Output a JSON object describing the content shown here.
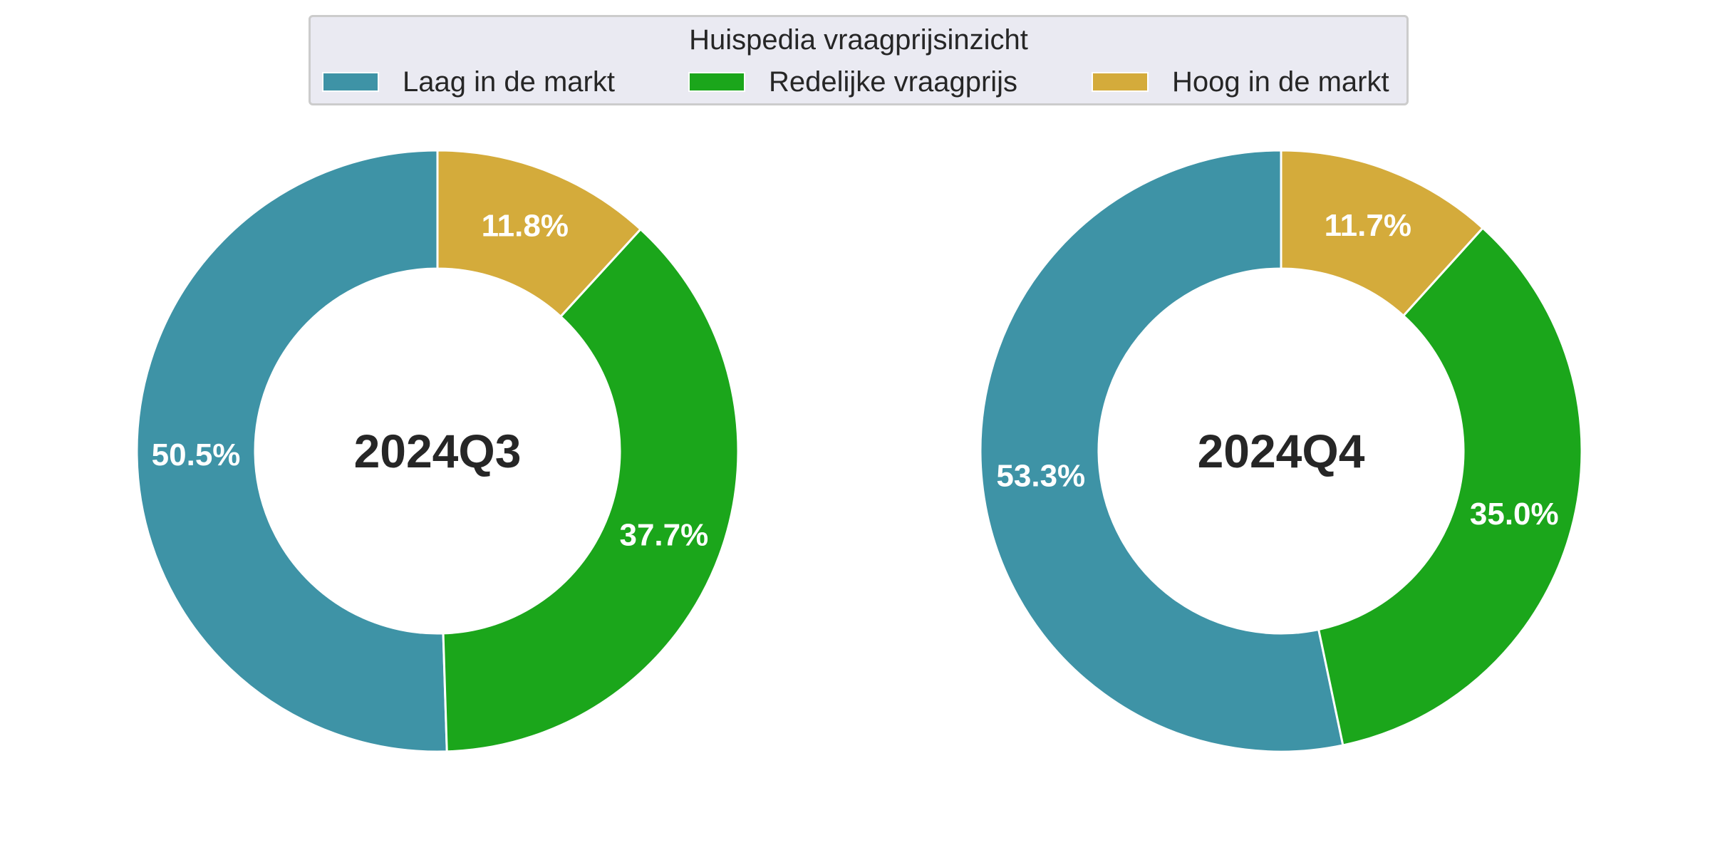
{
  "legend": {
    "title": "Huispedia vraagprijsinzicht",
    "entries": [
      {
        "label": "Laag in de markt",
        "color": "#3e93a6"
      },
      {
        "label": "Redelijke vraagprijs",
        "color": "#1ba61b"
      },
      {
        "label": "Hoog in de markt",
        "color": "#d4ab3b"
      }
    ]
  },
  "chart_data": [
    {
      "type": "pie",
      "variant": "donut",
      "center_label": "2024Q3",
      "categories": [
        "Laag in de markt",
        "Redelijke vraagprijs",
        "Hoog in de markt"
      ],
      "values": [
        50.5,
        37.7,
        11.8
      ],
      "data_labels": [
        "50.5%",
        "37.7%",
        "11.8%"
      ],
      "colors": [
        "#3e93a6",
        "#1ba61b",
        "#d4ab3b"
      ],
      "start_angle_deg": 90,
      "direction": "counterclockwise",
      "legend_position": "top-center"
    },
    {
      "type": "pie",
      "variant": "donut",
      "center_label": "2024Q4",
      "categories": [
        "Laag in de markt",
        "Redelijke vraagprijs",
        "Hoog in de markt"
      ],
      "values": [
        53.3,
        35.0,
        11.7
      ],
      "data_labels": [
        "53.3%",
        "35.0%",
        "11.7%"
      ],
      "colors": [
        "#3e93a6",
        "#1ba61b",
        "#d4ab3b"
      ],
      "start_angle_deg": 90,
      "direction": "counterclockwise",
      "legend_position": "top-center"
    }
  ]
}
